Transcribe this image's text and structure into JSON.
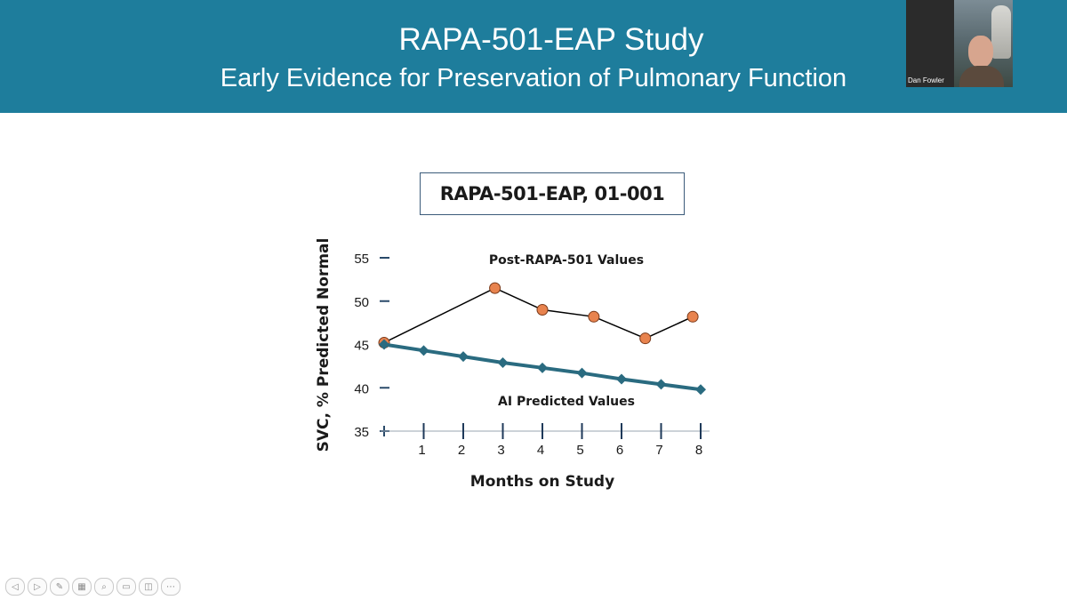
{
  "slide": {
    "title": "RAPA-501-EAP Study",
    "subtitle": "Early Evidence for Preservation of Pulmonary Function",
    "banner_color": "#1e7d9c"
  },
  "video": {
    "participant_name": "Dan Fowler"
  },
  "chart_data": {
    "type": "line",
    "title": "RAPA-501-EAP, 01-001",
    "xlabel": "Months on Study",
    "ylabel": "SVC, % Predicted Normal",
    "xlim": [
      0,
      8
    ],
    "ylim": [
      35,
      55
    ],
    "x_ticks": [
      1,
      2,
      3,
      4,
      5,
      6,
      7,
      8
    ],
    "y_ticks": [
      35,
      40,
      45,
      50,
      55
    ],
    "series": [
      {
        "name": "Post-RAPA-501 Values",
        "color": "#e8834e",
        "line_color": "#000000",
        "marker": "circle",
        "x": [
          0,
          2.8,
          4,
          5.3,
          6.6,
          7.8
        ],
        "values": [
          45.2,
          51.5,
          49.0,
          48.2,
          45.7,
          48.2
        ]
      },
      {
        "name": "AI Predicted Values",
        "color": "#2a6b80",
        "line_color": "#2a6b80",
        "marker": "diamond",
        "x": [
          0,
          1,
          2,
          3,
          4,
          5,
          6,
          7,
          8
        ],
        "values": [
          45.0,
          44.3,
          43.6,
          42.9,
          42.3,
          41.7,
          41.0,
          40.4,
          39.8
        ]
      }
    ],
    "annotations": [
      "Post-RAPA-501 Values",
      "AI Predicted Values"
    ]
  },
  "toolbar": {
    "buttons": [
      {
        "icon": "back-icon",
        "glyph": "◁"
      },
      {
        "icon": "forward-icon",
        "glyph": "▷"
      },
      {
        "icon": "pen-icon",
        "glyph": "✎"
      },
      {
        "icon": "slides-icon",
        "glyph": "▦"
      },
      {
        "icon": "zoom-icon",
        "glyph": "⌕"
      },
      {
        "icon": "subtitles-icon",
        "glyph": "▭"
      },
      {
        "icon": "camera-icon",
        "glyph": "◫"
      },
      {
        "icon": "more-icon",
        "glyph": "⋯"
      }
    ]
  }
}
